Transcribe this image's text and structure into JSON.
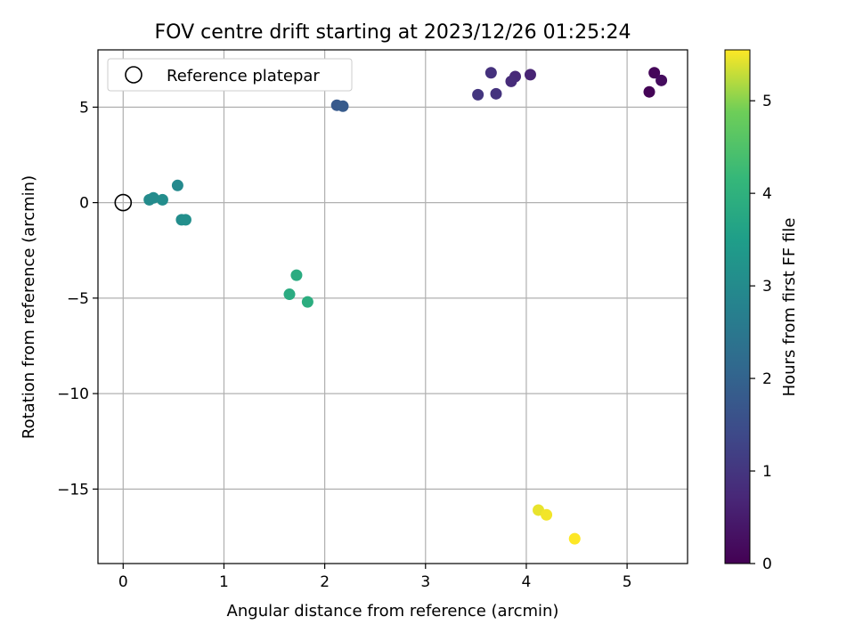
{
  "chart_data": {
    "type": "scatter",
    "title": "FOV centre drift starting at 2023/12/26 01:25:24",
    "xlabel": "Angular distance from reference (arcmin)",
    "ylabel": "Rotation from reference (arcmin)",
    "xlim": [
      -0.25,
      5.6
    ],
    "ylim": [
      -18.9,
      8.0
    ],
    "xticks": [
      0,
      1,
      2,
      3,
      4,
      5
    ],
    "xtick_labels": [
      "0",
      "1",
      "2",
      "3",
      "4",
      "5"
    ],
    "yticks": [
      5,
      0,
      -5,
      -10,
      -15
    ],
    "ytick_labels": [
      "5",
      "0",
      "−5",
      "−10",
      "−15"
    ],
    "grid": true,
    "legend": {
      "position": "top-left",
      "entries": [
        {
          "label": "Reference platepar",
          "marker": "open-circle"
        }
      ]
    },
    "reference_point": {
      "x": 0,
      "y": 0
    },
    "colorbar": {
      "label": "Hours from first FF file",
      "range": [
        0,
        5.55
      ],
      "ticks": [
        0,
        1,
        2,
        3,
        4,
        5
      ],
      "tick_labels": [
        "0",
        "1",
        "2",
        "3",
        "4",
        "5"
      ],
      "colormap": "viridis"
    },
    "points": [
      {
        "x": 5.22,
        "y": 5.8,
        "c": 0.05
      },
      {
        "x": 5.27,
        "y": 6.8,
        "c": 0.1
      },
      {
        "x": 5.34,
        "y": 6.4,
        "c": 0.2
      },
      {
        "x": 4.04,
        "y": 6.7,
        "c": 0.65
      },
      {
        "x": 3.89,
        "y": 6.6,
        "c": 0.75
      },
      {
        "x": 3.85,
        "y": 6.35,
        "c": 0.8
      },
      {
        "x": 3.65,
        "y": 6.8,
        "c": 0.9
      },
      {
        "x": 3.7,
        "y": 5.7,
        "c": 0.95
      },
      {
        "x": 3.52,
        "y": 5.65,
        "c": 1.0
      },
      {
        "x": 2.12,
        "y": 5.1,
        "c": 1.75
      },
      {
        "x": 2.18,
        "y": 5.05,
        "c": 1.8
      },
      {
        "x": 0.54,
        "y": 0.9,
        "c": 2.95
      },
      {
        "x": 0.26,
        "y": 0.15,
        "c": 3.0
      },
      {
        "x": 0.3,
        "y": 0.25,
        "c": 3.0
      },
      {
        "x": 0.39,
        "y": 0.15,
        "c": 3.05
      },
      {
        "x": 0.58,
        "y": -0.9,
        "c": 3.05
      },
      {
        "x": 0.62,
        "y": -0.9,
        "c": 3.1
      },
      {
        "x": 1.72,
        "y": -3.8,
        "c": 3.85
      },
      {
        "x": 1.65,
        "y": -4.8,
        "c": 3.85
      },
      {
        "x": 1.83,
        "y": -5.2,
        "c": 3.9
      },
      {
        "x": 4.12,
        "y": -16.1,
        "c": 5.45
      },
      {
        "x": 4.2,
        "y": -16.35,
        "c": 5.5
      },
      {
        "x": 4.48,
        "y": -17.6,
        "c": 5.55
      }
    ]
  }
}
